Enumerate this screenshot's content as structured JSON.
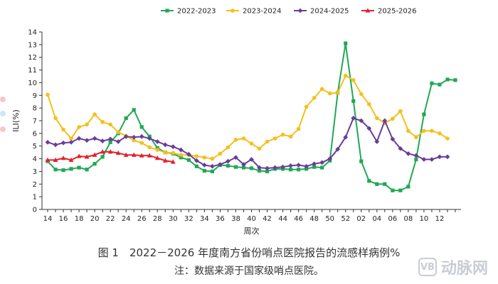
{
  "chart_data": {
    "type": "line",
    "title": "",
    "xlabel": "周次",
    "ylabel": "ILI(%)",
    "ylim": [
      0,
      14
    ],
    "yticks": [
      0,
      1,
      2,
      3,
      4,
      5,
      6,
      7,
      8,
      9,
      10,
      11,
      12,
      13,
      14
    ],
    "x_tick_labels": [
      "14",
      "16",
      "18",
      "20",
      "22",
      "24",
      "26",
      "28",
      "30",
      "32",
      "34",
      "36",
      "38",
      "40",
      "42",
      "44",
      "46",
      "48",
      "50",
      "52",
      "02",
      "04",
      "06",
      "08",
      "10",
      "12"
    ],
    "n_points": 53,
    "grid": false,
    "legend_position": "top-center",
    "series": [
      {
        "name": "2022-2023",
        "color": "#21a856",
        "marker": "square",
        "start": 0,
        "values": [
          3.8,
          3.15,
          3.1,
          3.2,
          3.3,
          3.15,
          3.6,
          4.15,
          5.3,
          6.0,
          7.2,
          7.85,
          6.5,
          5.75,
          4.85,
          4.5,
          4.4,
          4.1,
          3.9,
          3.4,
          3.05,
          3.0,
          3.5,
          3.45,
          3.35,
          3.3,
          3.25,
          3.05,
          3.0,
          3.2,
          3.2,
          3.15,
          3.15,
          3.2,
          3.35,
          3.3,
          3.85,
          9.2,
          13.1,
          8.55,
          3.8,
          2.25,
          2.0,
          2.0,
          1.5,
          1.5,
          1.8,
          3.95,
          7.5,
          9.95,
          9.85,
          10.25,
          10.2
        ]
      },
      {
        "name": "2023-2024",
        "color": "#f4c01b",
        "marker": "circle",
        "start": 0,
        "values": [
          9.05,
          7.2,
          6.3,
          5.6,
          6.5,
          6.7,
          7.5,
          6.9,
          6.7,
          6.1,
          5.8,
          5.45,
          5.25,
          4.9,
          4.7,
          4.5,
          4.45,
          4.3,
          4.3,
          4.2,
          4.1,
          4.0,
          4.4,
          4.9,
          5.5,
          5.6,
          5.2,
          4.8,
          5.35,
          5.6,
          5.9,
          5.75,
          6.35,
          8.1,
          8.8,
          9.5,
          9.15,
          9.2,
          10.55,
          10.2,
          9.1,
          8.3,
          7.2,
          6.8,
          7.15,
          7.75,
          6.2,
          5.7,
          6.2,
          6.2,
          6.0,
          5.6
        ]
      },
      {
        "name": "2024-2025",
        "color": "#6a3d9a",
        "marker": "diamond",
        "start": 0,
        "values": [
          5.3,
          5.1,
          5.25,
          5.3,
          5.6,
          5.45,
          5.6,
          5.4,
          5.55,
          5.35,
          5.75,
          5.7,
          5.75,
          5.6,
          5.35,
          5.1,
          4.95,
          4.7,
          4.35,
          3.85,
          3.5,
          3.4,
          3.55,
          3.8,
          4.1,
          3.55,
          3.95,
          3.3,
          3.25,
          3.3,
          3.35,
          3.45,
          3.5,
          3.4,
          3.6,
          3.7,
          4.0,
          4.75,
          5.7,
          7.2,
          7.0,
          6.4,
          5.35,
          7.0,
          5.55,
          4.8,
          4.4,
          4.25,
          3.95,
          3.95,
          4.15,
          4.15
        ]
      },
      {
        "name": "2025-2026",
        "color": "#e5202b",
        "marker": "triangle",
        "start": 0,
        "values": [
          3.9,
          3.9,
          4.05,
          3.9,
          4.2,
          4.15,
          4.3,
          4.55,
          4.55,
          4.45,
          4.3,
          4.3,
          4.25,
          4.25,
          4.05,
          3.85,
          3.75
        ]
      }
    ]
  },
  "captions": {
    "figure": "图 1　2022－2026 年度南方省份哨点医院报告的流感样病例%",
    "note": "注：数据来源于国家级哨点医院。"
  },
  "watermark": {
    "text": "动脉网",
    "logo_text": "VB"
  }
}
